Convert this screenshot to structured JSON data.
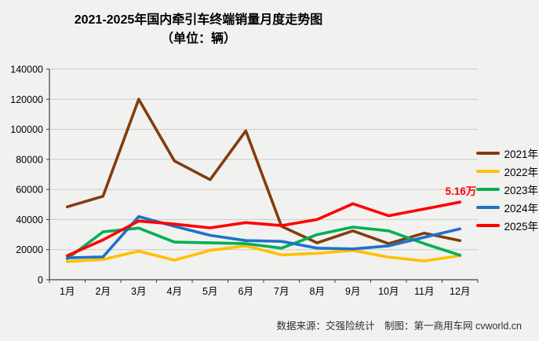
{
  "title_line1": "2021-2025年国内牵引车终端销量月度走势图",
  "title_line2": "（单位：辆）",
  "footer": "数据来源：交强险统计　制图：第一商用车网 cvworld.cn",
  "colors": {
    "background": "#f1f1f0",
    "gridline": "#c9c9c9",
    "axis": "#404040",
    "annotation": "#ff0000"
  },
  "chart_data": {
    "type": "line",
    "title": "2021-2025年国内牵引车终端销量月度走势图（单位：辆）",
    "categories": [
      "1月",
      "2月",
      "3月",
      "4月",
      "5月",
      "6月",
      "7月",
      "8月",
      "9月",
      "10月",
      "11月",
      "12月"
    ],
    "series": [
      {
        "name": "2021年",
        "color": "#843C0C",
        "values": [
          48500,
          55500,
          120000,
          79000,
          66500,
          99000,
          35500,
          24500,
          32500,
          24000,
          31000,
          26000
        ]
      },
      {
        "name": "2022年",
        "color": "#FFC000",
        "values": [
          12000,
          13500,
          19000,
          13000,
          19500,
          22500,
          16500,
          17500,
          19500,
          15000,
          12500,
          16000
        ]
      },
      {
        "name": "2023年",
        "color": "#00B050",
        "values": [
          14000,
          31800,
          34300,
          25000,
          24500,
          24000,
          21000,
          30000,
          35000,
          32500,
          24000,
          16300
        ]
      },
      {
        "name": "2024年",
        "color": "#1F72C6",
        "values": [
          14500,
          15200,
          42000,
          35500,
          29500,
          26000,
          25500,
          21000,
          20500,
          22500,
          28200,
          33800
        ]
      },
      {
        "name": "2025年",
        "color": "#FF0000",
        "values": [
          16000,
          26500,
          39000,
          37000,
          34500,
          38000,
          36000,
          40000,
          50500,
          42500,
          47000,
          51600
        ]
      }
    ],
    "ylim": [
      0,
      140000
    ],
    "ytick_step": 20000,
    "grid": true,
    "legend_position": "right",
    "annotation": {
      "text": "5.16万",
      "series": "2025年",
      "point_index": 11,
      "value": 51600
    }
  }
}
